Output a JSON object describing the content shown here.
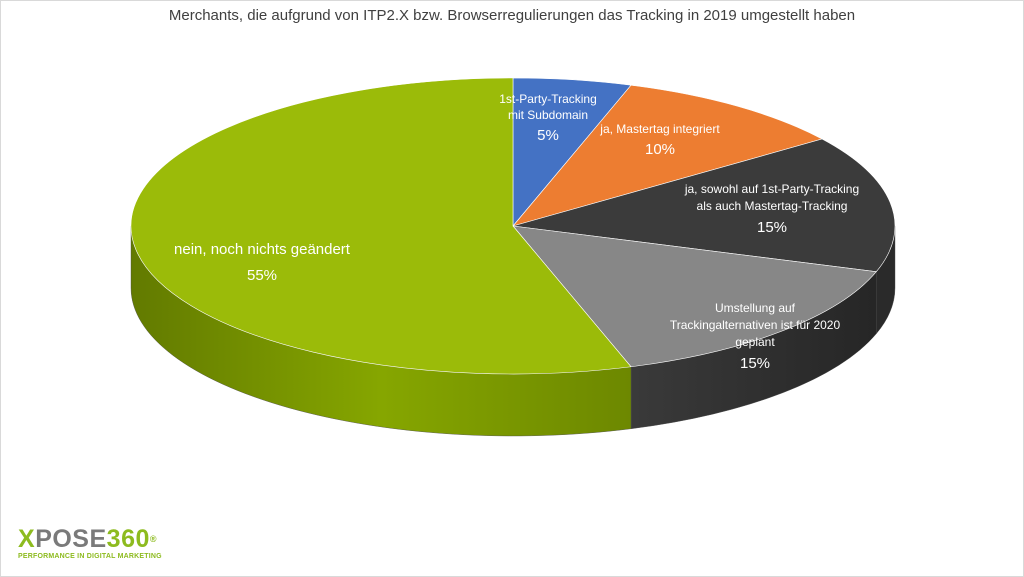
{
  "chart_data": {
    "type": "pie",
    "title": "Merchants, die aufgrund von ITP2.X bzw. Browserregulierungen das Tracking in 2019 umgestellt haben",
    "slices": [
      {
        "label": "1st-Party-Tracking mit Subdomain",
        "lines": [
          "1st-Party-Tracking",
          "mit Subdomain"
        ],
        "value": 5,
        "value_label": "5%",
        "color": "#4472c4",
        "side": "#2f528f"
      },
      {
        "label": "ja, Mastertag integriert",
        "lines": [
          "ja, Mastertag integriert"
        ],
        "value": 10,
        "value_label": "10%",
        "color": "#ed7d31",
        "side": "#b35f25"
      },
      {
        "label": "ja, sowohl auf 1st-Party-Tracking als auch Mastertag-Tracking",
        "lines": [
          "ja, sowohl auf 1st-Party-Tracking",
          "als auch Mastertag-Tracking"
        ],
        "value": 15,
        "value_label": "15%",
        "color": "#3b3b3b",
        "side": "#2a2a2a"
      },
      {
        "label": "Umstellung auf Trackingalternativen ist für 2020 geplant",
        "lines": [
          "Umstellung auf",
          "Trackingalternativen ist für 2020",
          "geplant"
        ],
        "value": 15,
        "value_label": "15%",
        "color": "#878787",
        "side": "#303030"
      },
      {
        "label": "nein, noch nichts geändert",
        "lines": [
          "nein, noch nichts geändert"
        ],
        "value": 55,
        "value_label": "55%",
        "color": "#9bbb09",
        "side": "#6f8a00"
      }
    ],
    "start_angle_deg": 0,
    "direction": "clockwise",
    "style": "3d-tilted"
  },
  "logo": {
    "name_x": "X",
    "name_rest": "POSE",
    "name_num": "360",
    "registered": "®",
    "tagline": "PERFORMANCE IN DIGITAL MARKETING"
  }
}
